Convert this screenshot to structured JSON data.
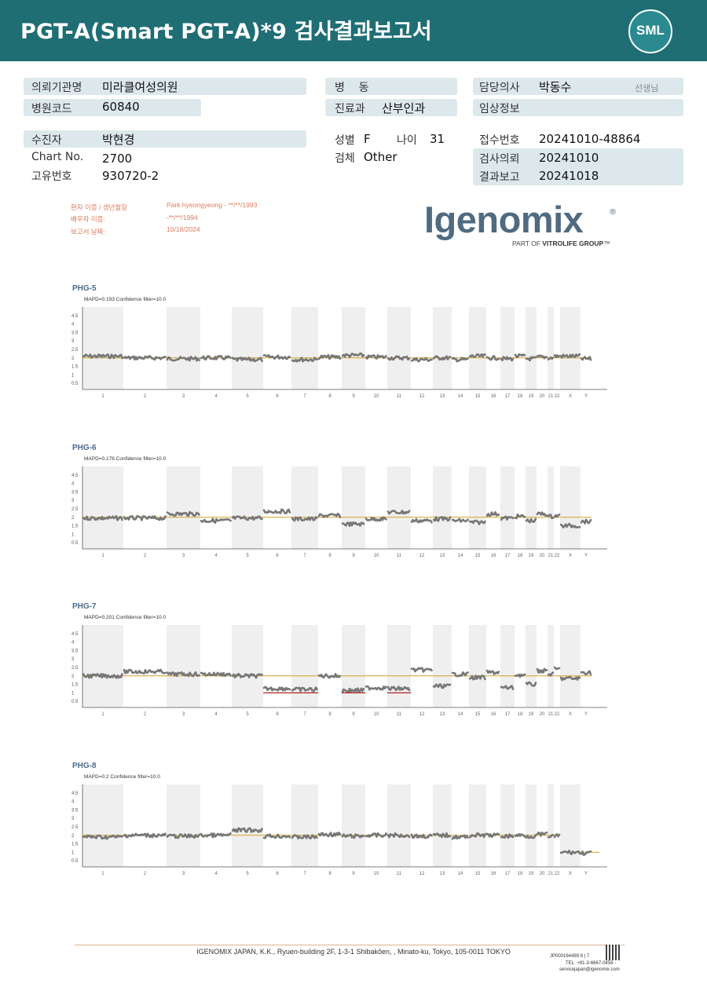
{
  "header": {
    "title": "PGT-A(Smart  PGT-A)*9 검사결과보고서",
    "logo": "SML"
  },
  "info": {
    "institution_label": "의뢰기관명",
    "institution": "미라클여성의원",
    "hospital_code_label": "병원코드",
    "hospital_code": "60840",
    "ward_label": "병    동",
    "ward": "",
    "department_label": "진료과",
    "department": "산부인과",
    "doctor_label": "담당의사",
    "doctor": "박동수",
    "doctor_suffix": "선생님",
    "clinical_label": "임상정보",
    "clinical": "",
    "patient_label": "수진자",
    "patient": "박현경",
    "chart_no_label": "Chart No.",
    "chart_no": "2700",
    "unique_no_label": "고유번호",
    "unique_no": "930720-2",
    "sex_label": "성별",
    "sex": "F",
    "age_label": "나이",
    "age": "31",
    "specimen_label": "검체",
    "specimen": "Other",
    "receipt_no_label": "접수번호",
    "receipt_no": "20241010-48864",
    "request_date_label": "검사의뢰",
    "request_date": "20241010",
    "report_date_label": "결과보고",
    "report_date": "20241018"
  },
  "patient_block": {
    "l1": "환자 이름 / 생년월일",
    "v1": "Park hyeongyeong - **/**/1993",
    "l2": "배우자 이름:",
    "v2": "-**/**/1994",
    "l3": "보고서 날짜:",
    "v3": "10/18/2024"
  },
  "brand": {
    "name": "Igenomix",
    "reg": "®",
    "tagline_pre": "PART OF ",
    "tagline_bold": "VITROLIFE GROUP",
    "tagline_post": "™"
  },
  "chart_data": [
    {
      "type": "line",
      "title": "PHG-5",
      "subtitle": "MAPD=0.193 Confidence filter=10.0",
      "y_ticks": [
        "4.5",
        "4",
        "3.5",
        "3",
        "2.5",
        "2",
        "1.5",
        "1",
        "0.5"
      ],
      "x_ticks": [
        "1",
        "2",
        "3",
        "4",
        "5",
        "6",
        "7",
        "8",
        "9",
        "10",
        "11",
        "12",
        "13",
        "14",
        "15",
        "16",
        "17",
        "18",
        "19",
        "20",
        "21",
        "22",
        "X",
        "Y"
      ],
      "baseline": 2.0,
      "segments": [
        {
          "chr": "1",
          "y": 2.1
        },
        {
          "chr": "2",
          "y": 2.0
        },
        {
          "chr": "3",
          "y": 1.95
        },
        {
          "chr": "4",
          "y": 2.0
        },
        {
          "chr": "5",
          "y": 1.9
        },
        {
          "chr": "6",
          "y": 2.05
        },
        {
          "chr": "7",
          "y": 1.9
        },
        {
          "chr": "8",
          "y": 2.05
        },
        {
          "chr": "9",
          "y": 2.15
        },
        {
          "chr": "10",
          "y": 2.05
        },
        {
          "chr": "11",
          "y": 2.0
        },
        {
          "chr": "12",
          "y": 1.9
        },
        {
          "chr": "13",
          "y": 2.0
        },
        {
          "chr": "14",
          "y": 1.9
        },
        {
          "chr": "15",
          "y": 2.1
        },
        {
          "chr": "16",
          "y": 2.0
        },
        {
          "chr": "17",
          "y": 1.95
        },
        {
          "chr": "18",
          "y": 2.1
        },
        {
          "chr": "19",
          "y": 1.95
        },
        {
          "chr": "20",
          "y": 2.05
        },
        {
          "chr": "21",
          "y": 2.0
        },
        {
          "chr": "22",
          "y": 2.1
        },
        {
          "chr": "X",
          "y": 2.1
        },
        {
          "chr": "Y",
          "y": 1.95
        }
      ]
    },
    {
      "type": "line",
      "title": "PHG-6",
      "subtitle": "MAPD=0.176 Confidence filter=10.0",
      "y_ticks": [
        "4.5",
        "4",
        "3.5",
        "3",
        "2.5",
        "2",
        "1.5",
        "1",
        "0.5"
      ],
      "x_ticks": [
        "1",
        "2",
        "3",
        "4",
        "5",
        "6",
        "7",
        "8",
        "9",
        "10",
        "11",
        "12",
        "13",
        "14",
        "15",
        "16",
        "17",
        "18",
        "19",
        "20",
        "21",
        "22",
        "X",
        "Y"
      ],
      "baseline": 2.0,
      "segments": [
        {
          "chr": "1",
          "y": 1.95
        },
        {
          "chr": "2",
          "y": 1.95
        },
        {
          "chr": "3",
          "y": 2.2
        },
        {
          "chr": "4",
          "y": 1.8
        },
        {
          "chr": "5",
          "y": 1.95
        },
        {
          "chr": "6",
          "y": 2.35
        },
        {
          "chr": "7",
          "y": 1.9
        },
        {
          "chr": "8",
          "y": 2.1
        },
        {
          "chr": "9",
          "y": 1.6
        },
        {
          "chr": "10",
          "y": 1.9
        },
        {
          "chr": "11",
          "y": 2.3
        },
        {
          "chr": "12",
          "y": 1.8
        },
        {
          "chr": "13",
          "y": 1.9
        },
        {
          "chr": "14",
          "y": 1.8
        },
        {
          "chr": "15",
          "y": 1.7
        },
        {
          "chr": "16",
          "y": 2.2
        },
        {
          "chr": "17",
          "y": 1.95
        },
        {
          "chr": "18",
          "y": 2.05
        },
        {
          "chr": "19",
          "y": 1.8
        },
        {
          "chr": "20",
          "y": 2.2
        },
        {
          "chr": "21",
          "y": 2.05
        },
        {
          "chr": "22",
          "y": 2.1
        },
        {
          "chr": "X",
          "y": 1.5
        },
        {
          "chr": "Y",
          "y": 1.75
        }
      ]
    },
    {
      "type": "line",
      "title": "PHG-7",
      "subtitle": "MAPD=0.201 Confidence filter=10.0",
      "y_ticks": [
        "4.5",
        "4",
        "3.5",
        "3",
        "2.5",
        "2",
        "1.5",
        "1",
        "0.5"
      ],
      "x_ticks": [
        "1",
        "2",
        "3",
        "4",
        "5",
        "6",
        "7",
        "8",
        "9",
        "10",
        "11",
        "12",
        "13",
        "14",
        "15",
        "16",
        "17",
        "18",
        "19",
        "20",
        "21",
        "22",
        "X",
        "Y"
      ],
      "baseline": 2.0,
      "segments": [
        {
          "chr": "1",
          "y": 2.0
        },
        {
          "chr": "2",
          "y": 2.25
        },
        {
          "chr": "3",
          "y": 2.1
        },
        {
          "chr": "4",
          "y": 2.1
        },
        {
          "chr": "5",
          "y": 2.0
        },
        {
          "chr": "6",
          "y": 1.25,
          "loss": true
        },
        {
          "chr": "7",
          "y": 1.2,
          "loss": true
        },
        {
          "chr": "8",
          "y": 2.0
        },
        {
          "chr": "9",
          "y": 1.15,
          "loss": true
        },
        {
          "chr": "10",
          "y": 1.3
        },
        {
          "chr": "11",
          "y": 1.25,
          "loss": true
        },
        {
          "chr": "12",
          "y": 2.35
        },
        {
          "chr": "13",
          "y": 1.4
        },
        {
          "chr": "14",
          "y": 2.1
        },
        {
          "chr": "15",
          "y": 1.9
        },
        {
          "chr": "16",
          "y": 2.2
        },
        {
          "chr": "17",
          "y": 1.3
        },
        {
          "chr": "18",
          "y": 2.05
        },
        {
          "chr": "19",
          "y": 1.5
        },
        {
          "chr": "20",
          "y": 2.3
        },
        {
          "chr": "21",
          "y": 2.1
        },
        {
          "chr": "22",
          "y": 2.4
        },
        {
          "chr": "X",
          "y": 1.85
        },
        {
          "chr": "Y",
          "y": 2.2
        }
      ]
    },
    {
      "type": "line",
      "title": "PHG-8",
      "subtitle": "MAPD=0.2 Confidence filter=10.0",
      "y_ticks": [
        "4.5",
        "4",
        "3.5",
        "3",
        "2.5",
        "2",
        "1.5",
        "1",
        "0.5"
      ],
      "x_ticks": [
        "1",
        "2",
        "3",
        "4",
        "5",
        "6",
        "7",
        "8",
        "9",
        "10",
        "11",
        "12",
        "13",
        "14",
        "15",
        "16",
        "17",
        "18",
        "19",
        "20",
        "21",
        "22",
        "X",
        "Y"
      ],
      "baseline": 2.0,
      "segments": [
        {
          "chr": "1",
          "y": 1.9
        },
        {
          "chr": "2",
          "y": 2.0
        },
        {
          "chr": "3",
          "y": 1.95
        },
        {
          "chr": "4",
          "y": 2.0
        },
        {
          "chr": "5",
          "y": 2.3
        },
        {
          "chr": "6",
          "y": 1.95
        },
        {
          "chr": "7",
          "y": 1.9
        },
        {
          "chr": "8",
          "y": 2.05
        },
        {
          "chr": "9",
          "y": 1.95
        },
        {
          "chr": "10",
          "y": 2.0
        },
        {
          "chr": "11",
          "y": 2.0
        },
        {
          "chr": "12",
          "y": 1.95
        },
        {
          "chr": "13",
          "y": 2.0
        },
        {
          "chr": "14",
          "y": 1.9
        },
        {
          "chr": "15",
          "y": 2.0
        },
        {
          "chr": "16",
          "y": 2.0
        },
        {
          "chr": "17",
          "y": 1.95
        },
        {
          "chr": "18",
          "y": 2.0
        },
        {
          "chr": "19",
          "y": 1.95
        },
        {
          "chr": "20",
          "y": 2.05
        },
        {
          "chr": "21",
          "y": 1.95
        },
        {
          "chr": "22",
          "y": 1.95
        },
        {
          "chr": "X",
          "y": 1.0
        },
        {
          "chr": "Y",
          "y": 0.95
        }
      ]
    }
  ],
  "footer": {
    "address": "IGENOMIX JAPAN, K.K., Ryuen-building 2F, 1-3-1 Shibakōen, , Minato-ku, Tokyo, 105-0011 TOKYO",
    "doc_id": "JP000164489     6 | 7",
    "phone": "TEL: +81-3-6667-0456 -",
    "email": "servicejapan@igenomix.com"
  }
}
